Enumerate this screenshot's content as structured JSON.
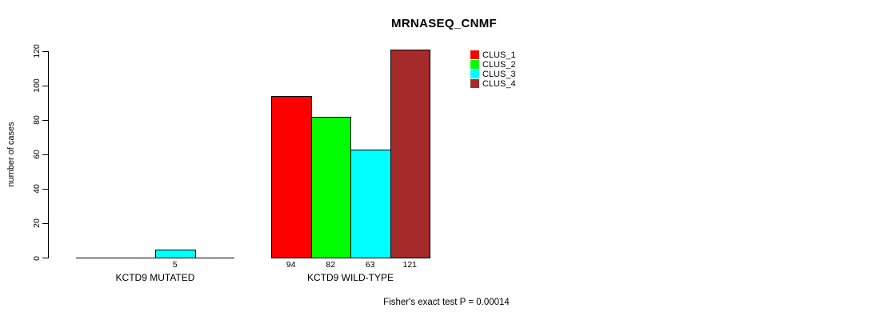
{
  "chart_data": {
    "type": "bar",
    "title": "MRNASEQ_CNMF",
    "ylabel": "number of cases",
    "xlabel": "",
    "ylim": [
      0,
      120
    ],
    "yticks": [
      0,
      20,
      40,
      60,
      80,
      100,
      120
    ],
    "grid": false,
    "legend_position": "top-right",
    "background_color": "#ffffff",
    "bar_border_color": "#000000",
    "categories": [
      "KCTD9 MUTATED",
      "KCTD9 WILD-TYPE"
    ],
    "series": [
      {
        "name": "CLUS_1",
        "color": "#ff0000",
        "values": [
          0,
          94
        ]
      },
      {
        "name": "CLUS_2",
        "color": "#00ff00",
        "values": [
          0,
          82
        ]
      },
      {
        "name": "CLUS_3",
        "color": "#00ffff",
        "values": [
          5,
          63
        ]
      },
      {
        "name": "CLUS_4",
        "color": "#a52a2a",
        "values": [
          0,
          121
        ]
      }
    ],
    "shown_value_labels": [
      "5",
      "94",
      "82",
      "63",
      "121"
    ],
    "footnote": "Fisher's exact test P = 0.00014"
  }
}
